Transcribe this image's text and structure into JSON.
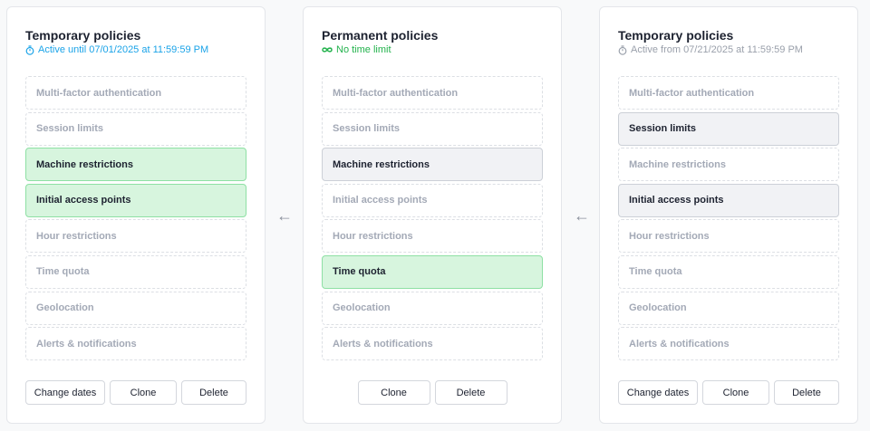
{
  "panels": [
    {
      "title": "Temporary policies",
      "subtitle": "Active until 07/01/2025 at 11:59:59 PM",
      "subtitle_color": "#1aa3e8",
      "icon": "stopwatch-icon",
      "items": [
        {
          "label": "Multi-factor authentication",
          "state": "empty"
        },
        {
          "label": "Session limits",
          "state": "empty"
        },
        {
          "label": "Machine restrictions",
          "state": "green"
        },
        {
          "label": "Initial access points",
          "state": "green"
        },
        {
          "label": "Hour restrictions",
          "state": "empty"
        },
        {
          "label": "Time quota",
          "state": "empty"
        },
        {
          "label": "Geolocation",
          "state": "empty"
        },
        {
          "label": "Alerts & notifications",
          "state": "empty"
        }
      ],
      "buttons": [
        "Change dates",
        "Clone",
        "Delete"
      ]
    },
    {
      "title": "Permanent policies",
      "subtitle": "No time limit",
      "subtitle_color": "#22b24c",
      "icon": "infinity-icon",
      "items": [
        {
          "label": "Multi-factor authentication",
          "state": "empty"
        },
        {
          "label": "Session limits",
          "state": "empty"
        },
        {
          "label": "Machine restrictions",
          "state": "gray"
        },
        {
          "label": "Initial access points",
          "state": "empty"
        },
        {
          "label": "Hour restrictions",
          "state": "empty"
        },
        {
          "label": "Time quota",
          "state": "green"
        },
        {
          "label": "Geolocation",
          "state": "empty"
        },
        {
          "label": "Alerts & notifications",
          "state": "empty"
        }
      ],
      "buttons": [
        "Clone",
        "Delete"
      ]
    },
    {
      "title": "Temporary policies",
      "subtitle": "Active from 07/21/2025 at 11:59:59 PM",
      "subtitle_color": "#9aa0ab",
      "icon": "stopwatch-icon",
      "items": [
        {
          "label": "Multi-factor authentication",
          "state": "empty"
        },
        {
          "label": "Session limits",
          "state": "gray"
        },
        {
          "label": "Machine restrictions",
          "state": "empty"
        },
        {
          "label": "Initial access points",
          "state": "gray"
        },
        {
          "label": "Hour restrictions",
          "state": "empty"
        },
        {
          "label": "Time quota",
          "state": "empty"
        },
        {
          "label": "Geolocation",
          "state": "empty"
        },
        {
          "label": "Alerts & notifications",
          "state": "empty"
        }
      ],
      "buttons": [
        "Change dates",
        "Clone",
        "Delete"
      ]
    }
  ],
  "arrow": "←"
}
